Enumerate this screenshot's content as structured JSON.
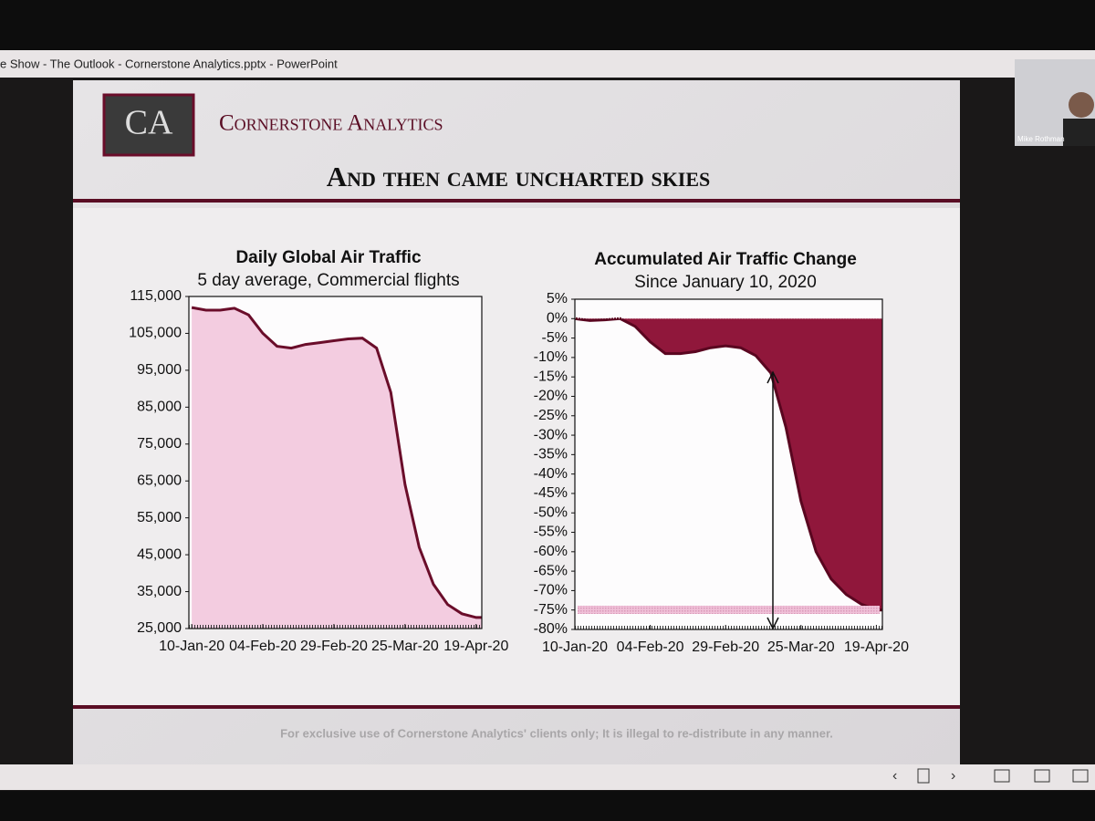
{
  "window_title": "e Show  -  The Outlook - Cornerstone Analytics.pptx - PowerPoint",
  "logo": "CA",
  "brand": "Cornerstone Analytics",
  "slide_title": "And then came uncharted skies",
  "footer": "For exclusive use of Cornerstone Analytics' clients only; It is illegal to re-distribute in any manner.",
  "participant": "Mike Rothman",
  "chart_data": [
    {
      "type": "area",
      "title": "Daily Global Air Traffic",
      "subtitle": "5 day average, Commercial flights",
      "x": [
        "2020-01-10",
        "2020-01-15",
        "2020-01-20",
        "2020-01-25",
        "2020-01-30",
        "2020-02-04",
        "2020-02-09",
        "2020-02-14",
        "2020-02-19",
        "2020-02-24",
        "2020-02-29",
        "2020-03-05",
        "2020-03-10",
        "2020-03-15",
        "2020-03-20",
        "2020-03-25",
        "2020-03-30",
        "2020-04-04",
        "2020-04-09",
        "2020-04-14",
        "2020-04-19",
        "2020-04-21"
      ],
      "values": [
        112000,
        111300,
        111300,
        111800,
        110000,
        105000,
        101500,
        101000,
        102000,
        102500,
        103000,
        103500,
        103700,
        101000,
        89000,
        64000,
        47000,
        37000,
        31500,
        29000,
        28000,
        28000
      ],
      "color": "#6a0d2a",
      "fill_color": "#f2c9de",
      "xlim": [
        "2020-01-09",
        "2020-04-21"
      ],
      "xticks": [
        {
          "value": "2020-01-10",
          "label": "10-Jan-20"
        },
        {
          "value": "2020-02-04",
          "label": "04-Feb-20"
        },
        {
          "value": "2020-02-29",
          "label": "29-Feb-20"
        },
        {
          "value": "2020-03-25",
          "label": "25-Mar-20"
        },
        {
          "value": "2020-04-19",
          "label": "19-Apr-20"
        }
      ],
      "ylim": [
        25000,
        115000
      ],
      "yticks": [
        {
          "value": 25000,
          "label": "25,000"
        },
        {
          "value": 35000,
          "label": "35,000"
        },
        {
          "value": 45000,
          "label": "45,000"
        },
        {
          "value": 55000,
          "label": "55,000"
        },
        {
          "value": 65000,
          "label": "65,000"
        },
        {
          "value": 75000,
          "label": "75,000"
        },
        {
          "value": 85000,
          "label": "85,000"
        },
        {
          "value": 95000,
          "label": "95,000"
        },
        {
          "value": 105000,
          "label": "105,000"
        },
        {
          "value": 115000,
          "label": "115,000"
        }
      ]
    },
    {
      "type": "area",
      "title": "Accumulated Air Traffic Change",
      "subtitle": "Since January 10, 2020",
      "x": [
        "2020-01-10",
        "2020-01-15",
        "2020-01-20",
        "2020-01-25",
        "2020-01-30",
        "2020-02-04",
        "2020-02-09",
        "2020-02-14",
        "2020-02-19",
        "2020-02-24",
        "2020-02-29",
        "2020-03-05",
        "2020-03-10",
        "2020-03-15",
        "2020-03-20",
        "2020-03-25",
        "2020-03-30",
        "2020-04-04",
        "2020-04-09",
        "2020-04-14",
        "2020-04-19",
        "2020-04-21"
      ],
      "values": [
        0,
        -0.5,
        -0.3,
        0,
        -2,
        -6,
        -9,
        -9,
        -8.5,
        -7.5,
        -7,
        -7.5,
        -9.5,
        -14,
        -28,
        -47,
        -60,
        -67,
        -71,
        -73.5,
        -75,
        -75
      ],
      "color": "#5a0620",
      "fill_color": "#8a0b30",
      "xlim": [
        "2020-01-10",
        "2020-04-21"
      ],
      "xticks": [
        {
          "value": "2020-01-10",
          "label": "10-Jan-20"
        },
        {
          "value": "2020-02-04",
          "label": "04-Feb-20"
        },
        {
          "value": "2020-02-29",
          "label": "29-Feb-20"
        },
        {
          "value": "2020-03-25",
          "label": "25-Mar-20"
        },
        {
          "value": "2020-04-19",
          "label": "19-Apr-20"
        }
      ],
      "ylim": [
        -80,
        5
      ],
      "yticks": [
        {
          "value": 5,
          "label": "5%"
        },
        {
          "value": 0,
          "label": "0%"
        },
        {
          "value": -5,
          "label": "-5%"
        },
        {
          "value": -10,
          "label": "-10%"
        },
        {
          "value": -15,
          "label": "-15%"
        },
        {
          "value": -20,
          "label": "-20%"
        },
        {
          "value": -25,
          "label": "-25%"
        },
        {
          "value": -30,
          "label": "-30%"
        },
        {
          "value": -35,
          "label": "-35%"
        },
        {
          "value": -40,
          "label": "-40%"
        },
        {
          "value": -45,
          "label": "-45%"
        },
        {
          "value": -50,
          "label": "-50%"
        },
        {
          "value": -55,
          "label": "-55%"
        },
        {
          "value": -60,
          "label": "-60%"
        },
        {
          "value": -65,
          "label": "-65%"
        },
        {
          "value": -70,
          "label": "-70%"
        },
        {
          "value": -75,
          "label": "-75%"
        },
        {
          "value": -80,
          "label": "-80%"
        }
      ]
    }
  ]
}
